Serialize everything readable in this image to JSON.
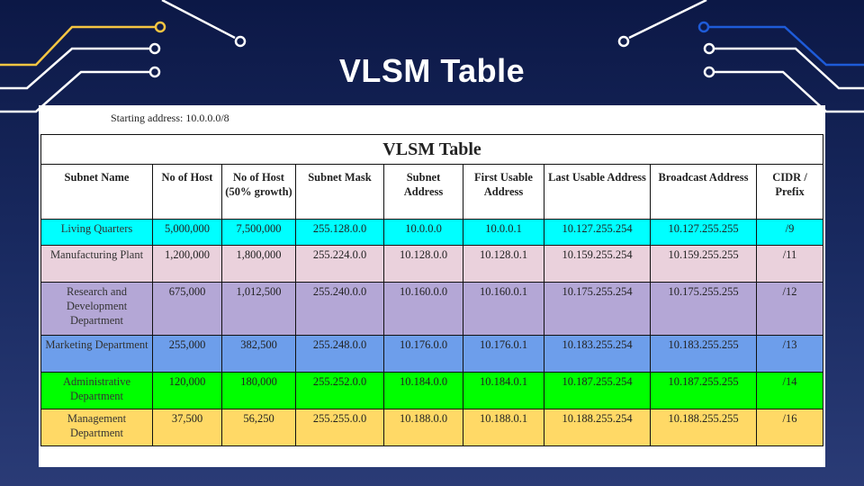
{
  "slide": {
    "title": "VLSM Table"
  },
  "document": {
    "starting_address": "Starting address: 10.0.0.0/8",
    "table_caption": "VLSM Table",
    "headers": [
      "Subnet Name",
      "No of Host",
      "No of Host (50% growth)",
      "Subnet Mask",
      "Subnet Address",
      "First Usable Address",
      "Last Usable Address",
      "Broadcast Address",
      "CIDR / Prefix"
    ],
    "rows": [
      {
        "color": "#00ffff",
        "cells": [
          "Living Quarters",
          "5,000,000",
          "7,500,000",
          "255.128.0.0",
          "10.0.0.0",
          "10.0.0.1",
          "10.127.255.254",
          "10.127.255.255",
          "/9"
        ]
      },
      {
        "color": "#ead1dc",
        "cells": [
          "Manufacturing Plant",
          "1,200,000",
          "1,800,000",
          "255.224.0.0",
          "10.128.0.0",
          "10.128.0.1",
          "10.159.255.254",
          "10.159.255.255",
          "/11"
        ]
      },
      {
        "color": "#b4a7d6",
        "cells": [
          "Research and Development Department",
          "675,000",
          "1,012,500",
          "255.240.0.0",
          "10.160.0.0",
          "10.160.0.1",
          "10.175.255.254",
          "10.175.255.255",
          "/12"
        ]
      },
      {
        "color": "#6d9eeb",
        "cells": [
          "Marketing Department",
          "255,000",
          "382,500",
          "255.248.0.0",
          "10.176.0.0",
          "10.176.0.1",
          "10.183.255.254",
          "10.183.255.255",
          "/13"
        ]
      },
      {
        "color": "#00ff00",
        "cells": [
          "Administrative Department",
          "120,000",
          "180,000",
          "255.252.0.0",
          "10.184.0.0",
          "10.184.0.1",
          "10.187.255.254",
          "10.187.255.255",
          "/14"
        ]
      },
      {
        "color": "#ffd966",
        "cells": [
          "Management Department",
          "37,500",
          "56,250",
          "255.255.0.0",
          "10.188.0.0",
          "10.188.0.1",
          "10.188.255.254",
          "10.188.255.255",
          "/16"
        ]
      }
    ]
  },
  "colors": {
    "background": "#0c1846",
    "circuit_yellow": "#f5c542",
    "circuit_blue": "#1e5bd8",
    "circuit_white": "#ffffff"
  }
}
